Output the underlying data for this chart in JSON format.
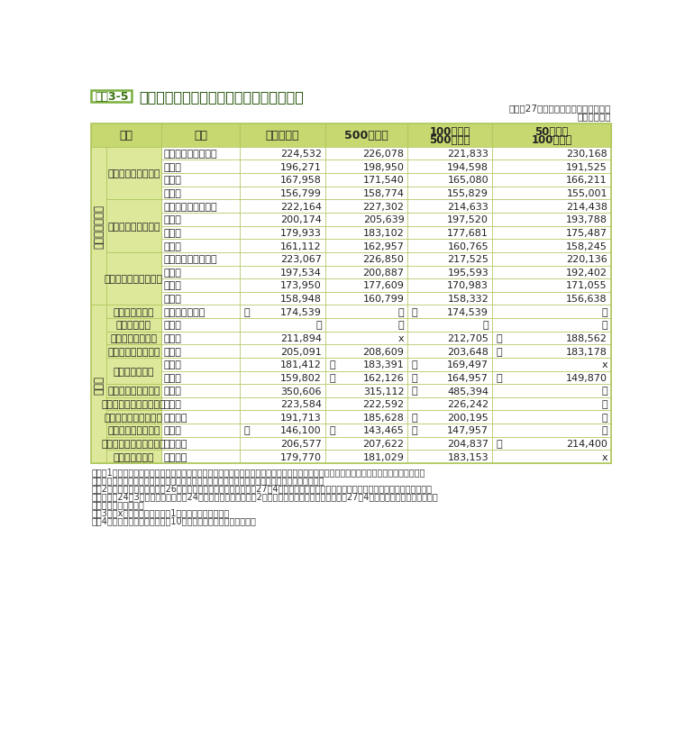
{
  "title": "民間の職種別、学歴別、企業規模別初任給",
  "title_tag": "資料3-5",
  "subtitle1": "（平成27年職種別民間給与実態調査）",
  "subtitle2": "（単位：円）",
  "header_bg": "#c8d870",
  "section_bg": "#dde89a",
  "row_bg": "#ffffff",
  "border_color": "#b0c860",
  "rows": [
    {
      "section": "事務・技術関係",
      "group": "新　卒　事　務　員",
      "edu": "大学院修士課程修了",
      "v1": "224,532",
      "v2": "226,078",
      "v3": "221,833",
      "v4": "230,168",
      "p1": "",
      "p2": "",
      "p3": "",
      "p4": ""
    },
    {
      "section": "事務・技術関係",
      "group": "新　卒　事　務　員",
      "edu": "大学卒",
      "v1": "196,271",
      "v2": "198,950",
      "v3": "194,598",
      "v4": "191,525",
      "p1": "",
      "p2": "",
      "p3": "",
      "p4": ""
    },
    {
      "section": "事務・技術関係",
      "group": "新　卒　事　務　員",
      "edu": "短大卒",
      "v1": "167,958",
      "v2": "171,540",
      "v3": "165,080",
      "v4": "166,211",
      "p1": "",
      "p2": "",
      "p3": "",
      "p4": ""
    },
    {
      "section": "事務・技術関係",
      "group": "新　卒　事　務　員",
      "edu": "高校卒",
      "v1": "156,799",
      "v2": "158,774",
      "v3": "155,829",
      "v4": "155,001",
      "p1": "",
      "p2": "",
      "p3": "",
      "p4": ""
    },
    {
      "section": "事務・技術関係",
      "group": "新　卒　技　術　者",
      "edu": "大学院修士課程修了",
      "v1": "222,164",
      "v2": "227,302",
      "v3": "214,633",
      "v4": "214,438",
      "p1": "",
      "p2": "",
      "p3": "",
      "p4": ""
    },
    {
      "section": "事務・技術関係",
      "group": "新　卒　技　術　者",
      "edu": "大学卒",
      "v1": "200,174",
      "v2": "205,639",
      "v3": "197,520",
      "v4": "193,788",
      "p1": "",
      "p2": "",
      "p3": "",
      "p4": ""
    },
    {
      "section": "事務・技術関係",
      "group": "新　卒　技　術　者",
      "edu": "短大卒",
      "v1": "179,933",
      "v2": "183,102",
      "v3": "177,681",
      "v4": "175,487",
      "p1": "",
      "p2": "",
      "p3": "",
      "p4": ""
    },
    {
      "section": "事務・技術関係",
      "group": "新　卒　技　術　者",
      "edu": "高校卒",
      "v1": "161,112",
      "v2": "162,957",
      "v3": "160,765",
      "v4": "158,245",
      "p1": "",
      "p2": "",
      "p3": "",
      "p4": ""
    },
    {
      "section": "事務・技術関係",
      "group": "新卒事務員・技術者計",
      "edu": "大学院修士課程修了",
      "v1": "223,067",
      "v2": "226,850",
      "v3": "217,525",
      "v4": "220,136",
      "p1": "",
      "p2": "",
      "p3": "",
      "p4": ""
    },
    {
      "section": "事務・技術関係",
      "group": "新卒事務員・技術者計",
      "edu": "大学卒",
      "v1": "197,534",
      "v2": "200,887",
      "v3": "195,593",
      "v4": "192,402",
      "p1": "",
      "p2": "",
      "p3": "",
      "p4": ""
    },
    {
      "section": "事務・技術関係",
      "group": "新卒事務員・技術者計",
      "edu": "短大卒",
      "v1": "173,950",
      "v2": "177,609",
      "v3": "170,983",
      "v4": "171,055",
      "p1": "",
      "p2": "",
      "p3": "",
      "p4": ""
    },
    {
      "section": "事務・技術関係",
      "group": "新卒事務員・技術者計",
      "edu": "高校卒",
      "v1": "158,948",
      "v2": "160,799",
      "v3": "158,332",
      "v4": "156,638",
      "p1": "",
      "p2": "",
      "p3": "",
      "p4": ""
    },
    {
      "section": "その他",
      "group": "新　卒　船　員",
      "edu": "海上技術学校卒",
      "v1": "174,539",
      "v2": "－",
      "v3": "174,539",
      "v4": "－",
      "p1": "＊",
      "p2": "",
      "p3": "＊",
      "p4": ""
    },
    {
      "section": "その他",
      "group": "新卒大学助教",
      "edu": "大学卒",
      "v1": "－",
      "v2": "－",
      "v3": "－",
      "v4": "－",
      "p1": "",
      "p2": "",
      "p3": "",
      "p4": ""
    },
    {
      "section": "その他",
      "group": "新卒高等学校教諭",
      "edu": "大学卒",
      "v1": "211,894",
      "v2": "x",
      "v3": "212,705",
      "v4": "188,562",
      "p1": "",
      "p2": "",
      "p3": "",
      "p4": "＊"
    },
    {
      "section": "その他",
      "group": "新　卒　研　究　員",
      "edu": "大学卒",
      "v1": "205,091",
      "v2": "208,609",
      "v3": "203,648",
      "v4": "183,178",
      "p1": "",
      "p2": "",
      "p3": "",
      "p4": "＊"
    },
    {
      "section": "その他",
      "group": "新卒研究補助員",
      "edu": "短大卒",
      "v1": "181,412",
      "v2": "183,391",
      "v3": "169,497",
      "v4": "x",
      "p1": "",
      "p2": "＊",
      "p3": "＊",
      "p4": ""
    },
    {
      "section": "その他",
      "group": "新卒研究補助員",
      "edu": "高校卒",
      "v1": "159,802",
      "v2": "162,126",
      "v3": "164,957",
      "v4": "149,870",
      "p1": "",
      "p2": "＊",
      "p3": "＊",
      "p4": "＊"
    },
    {
      "section": "その他",
      "group": "準　新　卒　医　師",
      "edu": "大学卒",
      "v1": "350,606",
      "v2": "315,112",
      "v3": "485,394",
      "v4": "－",
      "p1": "",
      "p2": "",
      "p3": "＊",
      "p4": ""
    },
    {
      "section": "その他",
      "group": "準　新　卒　薬　剤　師",
      "edu": "大学卒",
      "v1": "223,584",
      "v2": "222,592",
      "v3": "226,242",
      "v4": "－",
      "p1": "",
      "p2": "",
      "p3": "",
      "p4": ""
    },
    {
      "section": "その他",
      "group": "準新卒診療放射線技師",
      "edu": "養成所卒",
      "v1": "191,713",
      "v2": "185,628",
      "v3": "200,195",
      "v4": "－",
      "p1": "",
      "p2": "",
      "p3": "＊",
      "p4": ""
    },
    {
      "section": "その他",
      "group": "新　卒　栄　養　士",
      "edu": "短大卒",
      "v1": "146,100",
      "v2": "143,465",
      "v3": "147,957",
      "v4": "－",
      "p1": "＊",
      "p2": "＊",
      "p3": "＊",
      "p4": ""
    },
    {
      "section": "その他",
      "group": "準　新　卒　看　護　師",
      "edu": "養成所卒",
      "v1": "206,577",
      "v2": "207,622",
      "v3": "204,837",
      "v4": "214,400",
      "p1": "",
      "p2": "",
      "p3": "",
      "p4": "＊"
    },
    {
      "section": "その他",
      "group": "準新卒准看護師",
      "edu": "養成所卒",
      "v1": "179,770",
      "v2": "181,029",
      "v3": "183,153",
      "v4": "x",
      "p1": "",
      "p2": "",
      "p3": "",
      "p4": ""
    }
  ],
  "notes": [
    "（注）1　金額は、きまって支給する給与から時間外手当、家族手当、通勤手当等特定の者にのみ支給される給与を除き、国家公務員の地域",
    "　　　　手当に相当する給与を含むものであり、採用のある事業所について平均したものである。",
    "　　2　「準新卒」とは、平成26年度中に資格免許を取得し、平成27年4月までの間に採用された場合をいう。なお、医師については、平",
    "　　　　成24年3月大学卒業後、平成24年度中に免許を取得し、2年間の臨床研修を修了した後、平成27年4月までの間に採用された者に",
    "　　　　限っている。",
    "　　3　「x」は、調査事業所が1事業所の場合である。",
    "　　4　「＊」は、調査事業所が10事業所以下であることを示す。"
  ]
}
